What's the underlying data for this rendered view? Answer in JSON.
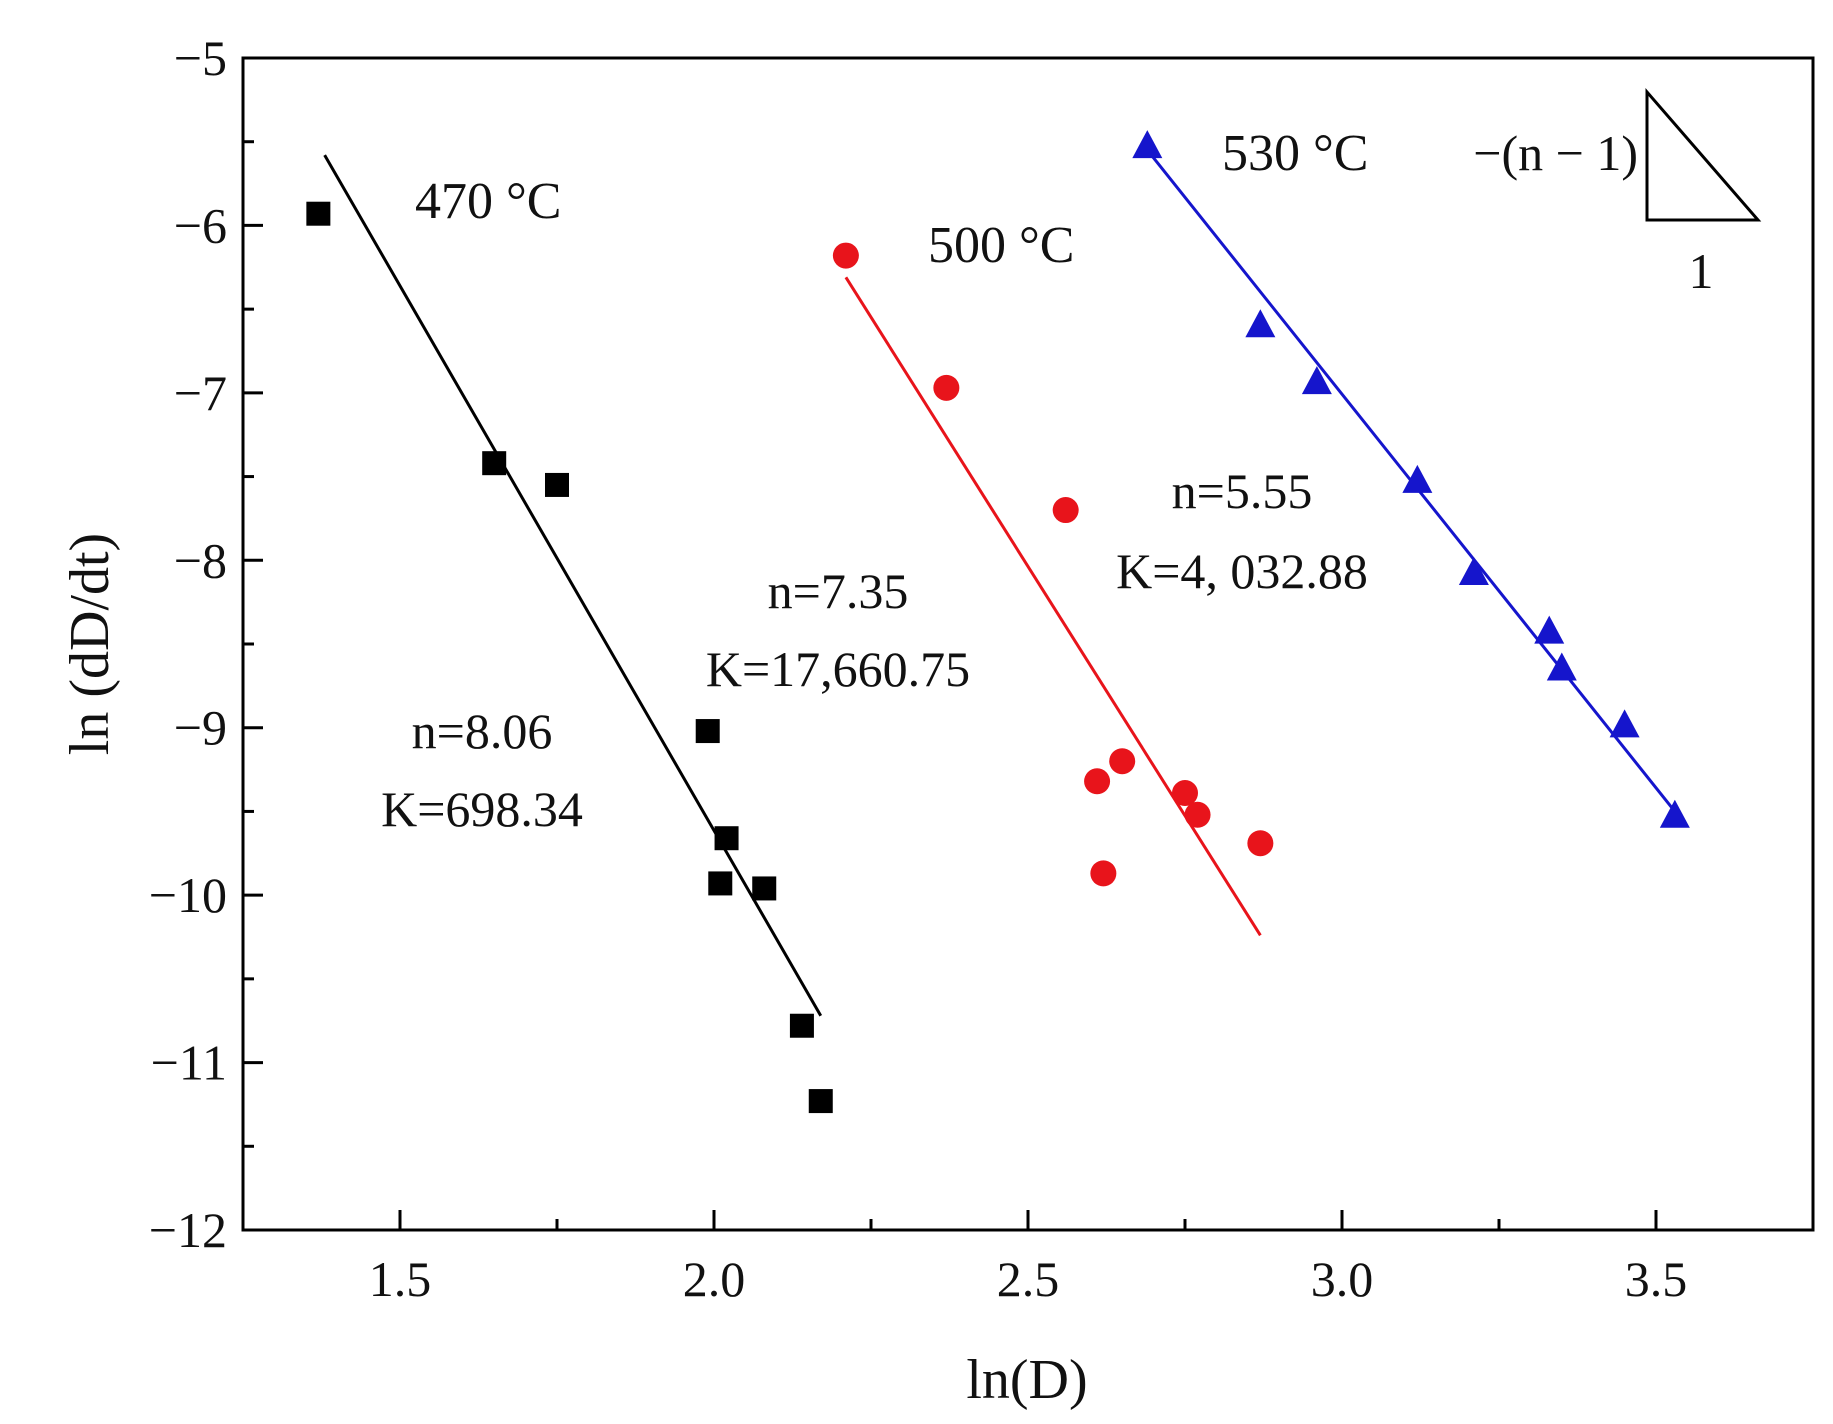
{
  "chart_data": {
    "type": "scatter",
    "title": "",
    "xlabel": "ln(D)",
    "ylabel": "ln (dD/dt)",
    "xlim": [
      1.25,
      3.75
    ],
    "ylim": [
      -12,
      -5
    ],
    "xticks": [
      1.5,
      2.0,
      2.5,
      3.0,
      3.5
    ],
    "xtick_labels": [
      "1.5",
      "2.0",
      "2.5",
      "3.0",
      "3.5"
    ],
    "yticks": [
      -5,
      -6,
      -7,
      -8,
      -9,
      -10,
      -11,
      -12
    ],
    "ytick_labels": [
      "−5",
      "−6",
      "−7",
      "−8",
      "−9",
      "−10",
      "−11",
      "−12"
    ],
    "series": [
      {
        "name": "470 °C",
        "color": "#000000",
        "marker": "square",
        "x": [
          1.37,
          1.65,
          1.75,
          1.99,
          2.01,
          2.02,
          2.08,
          2.14,
          2.17
        ],
        "y": [
          -5.93,
          -7.42,
          -7.55,
          -9.02,
          -9.93,
          -9.66,
          -9.96,
          -10.78,
          -11.23
        ],
        "fit": {
          "x": [
            1.38,
            2.17
          ],
          "y": [
            -5.58,
            -10.72
          ]
        },
        "fit_text": [
          "n=8.06",
          "K=698.34"
        ]
      },
      {
        "name": "500 °C",
        "color": "#e8141b",
        "marker": "circle",
        "x": [
          2.21,
          2.37,
          2.56,
          2.61,
          2.62,
          2.65,
          2.75,
          2.77,
          2.87
        ],
        "y": [
          -6.18,
          -6.97,
          -7.7,
          -9.32,
          -9.87,
          -9.2,
          -9.39,
          -9.52,
          -9.69
        ],
        "fit": {
          "x": [
            2.21,
            2.87
          ],
          "y": [
            -6.31,
            -10.24
          ]
        },
        "fit_text": [
          "n=7.35",
          "K=17,660.75"
        ]
      },
      {
        "name": "530 °C",
        "color": "#1515cc",
        "marker": "triangle",
        "x": [
          2.69,
          2.87,
          2.96,
          3.12,
          3.21,
          3.33,
          3.35,
          3.45,
          3.53
        ],
        "y": [
          -5.52,
          -6.59,
          -6.93,
          -7.52,
          -8.07,
          -8.42,
          -8.64,
          -8.98,
          -9.52
        ],
        "fit": {
          "x": [
            2.69,
            3.53
          ],
          "y": [
            -5.55,
            -9.5
          ]
        },
        "fit_text": [
          "n=5.55",
          "K=4, 032.88"
        ]
      }
    ],
    "slope_legend": {
      "rise": "−(n − 1)",
      "run": "1"
    }
  }
}
